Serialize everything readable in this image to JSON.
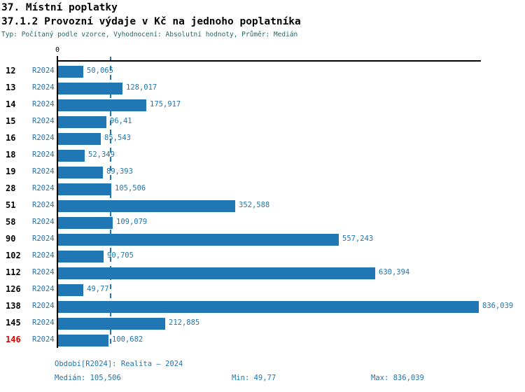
{
  "header": {
    "title1": "37. Místní poplatky",
    "title2": "37.1.2 Provozní výdaje v Kč na jednoho poplatníka",
    "subtitle": "Typ: Počítaný podle vzorce, Vyhodnocení: Absolutní hodnoty, Průměr: Medián"
  },
  "chart_data": {
    "type": "bar",
    "orientation": "horizontal",
    "title": "37.1.2 Provozní výdaje v Kč na jednoho poplatníka",
    "zero_label": "0",
    "series_label": "R2024",
    "xlim": [
      0,
      836.039
    ],
    "median": 105.506,
    "min": 49.77,
    "max": 836.039,
    "highlight_category": "146",
    "grid": "median-dashed-line-only",
    "rows": [
      {
        "category": "12",
        "period": "R2024",
        "value": 50.065,
        "label": "50,065"
      },
      {
        "category": "13",
        "period": "R2024",
        "value": 128.017,
        "label": "128,017"
      },
      {
        "category": "14",
        "period": "R2024",
        "value": 175.917,
        "label": "175,917"
      },
      {
        "category": "15",
        "period": "R2024",
        "value": 96.41,
        "label": "96,41"
      },
      {
        "category": "16",
        "period": "R2024",
        "value": 85.543,
        "label": "85,543"
      },
      {
        "category": "18",
        "period": "R2024",
        "value": 52.349,
        "label": "52,349"
      },
      {
        "category": "19",
        "period": "R2024",
        "value": 89.393,
        "label": "89,393"
      },
      {
        "category": "28",
        "period": "R2024",
        "value": 105.506,
        "label": "105,506"
      },
      {
        "category": "51",
        "period": "R2024",
        "value": 352.588,
        "label": "352,588"
      },
      {
        "category": "58",
        "period": "R2024",
        "value": 109.079,
        "label": "109,079"
      },
      {
        "category": "90",
        "period": "R2024",
        "value": 557.243,
        "label": "557,243"
      },
      {
        "category": "102",
        "period": "R2024",
        "value": 90.705,
        "label": "90,705"
      },
      {
        "category": "112",
        "period": "R2024",
        "value": 630.394,
        "label": "630,394"
      },
      {
        "category": "126",
        "period": "R2024",
        "value": 49.77,
        "label": "49,77"
      },
      {
        "category": "138",
        "period": "R2024",
        "value": 836.039,
        "label": "836,039"
      },
      {
        "category": "145",
        "period": "R2024",
        "value": 212.885,
        "label": "212,885"
      },
      {
        "category": "146",
        "period": "R2024",
        "value": 100.682,
        "label": "100,682"
      }
    ],
    "colors": {
      "bar": "#2177b3",
      "text_blue": "#2177b3",
      "median_line": "#2177b3",
      "category_text": "#000000",
      "highlight_text": "#dd0000",
      "subtitle_text": "#1a6b6b"
    }
  },
  "footer": {
    "period": "Období[R2024]: Realita – 2024",
    "median": "Medián: 105,506",
    "min": "Min: 49,77",
    "max": "Max: 836,039"
  }
}
